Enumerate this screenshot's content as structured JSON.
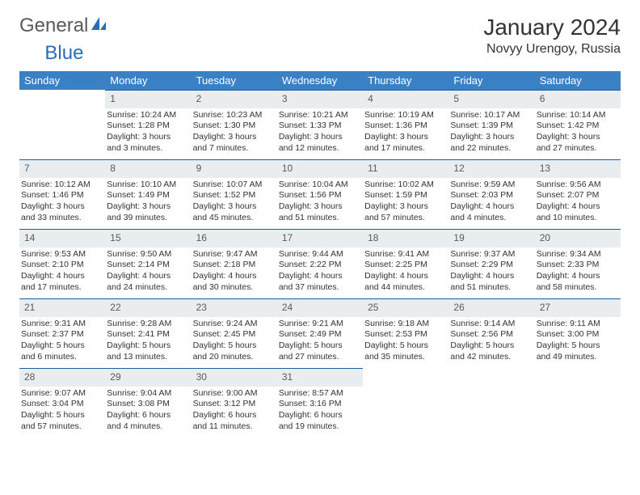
{
  "logo": {
    "text1": "General",
    "text2": "Blue"
  },
  "title": "January 2024",
  "location": "Novyy Urengoy, Russia",
  "weekdays": [
    "Sunday",
    "Monday",
    "Tuesday",
    "Wednesday",
    "Thursday",
    "Friday",
    "Saturday"
  ],
  "colors": {
    "headerBg": "#3a80c4",
    "dayBg": "#e9edf0",
    "borderTop": "#1a5fa0"
  },
  "weeks": [
    [
      {
        "n": "",
        "sr": "",
        "ss": "",
        "dl1": "",
        "dl2": ""
      },
      {
        "n": "1",
        "sr": "Sunrise: 10:24 AM",
        "ss": "Sunset: 1:28 PM",
        "dl1": "Daylight: 3 hours",
        "dl2": "and 3 minutes."
      },
      {
        "n": "2",
        "sr": "Sunrise: 10:23 AM",
        "ss": "Sunset: 1:30 PM",
        "dl1": "Daylight: 3 hours",
        "dl2": "and 7 minutes."
      },
      {
        "n": "3",
        "sr": "Sunrise: 10:21 AM",
        "ss": "Sunset: 1:33 PM",
        "dl1": "Daylight: 3 hours",
        "dl2": "and 12 minutes."
      },
      {
        "n": "4",
        "sr": "Sunrise: 10:19 AM",
        "ss": "Sunset: 1:36 PM",
        "dl1": "Daylight: 3 hours",
        "dl2": "and 17 minutes."
      },
      {
        "n": "5",
        "sr": "Sunrise: 10:17 AM",
        "ss": "Sunset: 1:39 PM",
        "dl1": "Daylight: 3 hours",
        "dl2": "and 22 minutes."
      },
      {
        "n": "6",
        "sr": "Sunrise: 10:14 AM",
        "ss": "Sunset: 1:42 PM",
        "dl1": "Daylight: 3 hours",
        "dl2": "and 27 minutes."
      }
    ],
    [
      {
        "n": "7",
        "sr": "Sunrise: 10:12 AM",
        "ss": "Sunset: 1:46 PM",
        "dl1": "Daylight: 3 hours",
        "dl2": "and 33 minutes."
      },
      {
        "n": "8",
        "sr": "Sunrise: 10:10 AM",
        "ss": "Sunset: 1:49 PM",
        "dl1": "Daylight: 3 hours",
        "dl2": "and 39 minutes."
      },
      {
        "n": "9",
        "sr": "Sunrise: 10:07 AM",
        "ss": "Sunset: 1:52 PM",
        "dl1": "Daylight: 3 hours",
        "dl2": "and 45 minutes."
      },
      {
        "n": "10",
        "sr": "Sunrise: 10:04 AM",
        "ss": "Sunset: 1:56 PM",
        "dl1": "Daylight: 3 hours",
        "dl2": "and 51 minutes."
      },
      {
        "n": "11",
        "sr": "Sunrise: 10:02 AM",
        "ss": "Sunset: 1:59 PM",
        "dl1": "Daylight: 3 hours",
        "dl2": "and 57 minutes."
      },
      {
        "n": "12",
        "sr": "Sunrise: 9:59 AM",
        "ss": "Sunset: 2:03 PM",
        "dl1": "Daylight: 4 hours",
        "dl2": "and 4 minutes."
      },
      {
        "n": "13",
        "sr": "Sunrise: 9:56 AM",
        "ss": "Sunset: 2:07 PM",
        "dl1": "Daylight: 4 hours",
        "dl2": "and 10 minutes."
      }
    ],
    [
      {
        "n": "14",
        "sr": "Sunrise: 9:53 AM",
        "ss": "Sunset: 2:10 PM",
        "dl1": "Daylight: 4 hours",
        "dl2": "and 17 minutes."
      },
      {
        "n": "15",
        "sr": "Sunrise: 9:50 AM",
        "ss": "Sunset: 2:14 PM",
        "dl1": "Daylight: 4 hours",
        "dl2": "and 24 minutes."
      },
      {
        "n": "16",
        "sr": "Sunrise: 9:47 AM",
        "ss": "Sunset: 2:18 PM",
        "dl1": "Daylight: 4 hours",
        "dl2": "and 30 minutes."
      },
      {
        "n": "17",
        "sr": "Sunrise: 9:44 AM",
        "ss": "Sunset: 2:22 PM",
        "dl1": "Daylight: 4 hours",
        "dl2": "and 37 minutes."
      },
      {
        "n": "18",
        "sr": "Sunrise: 9:41 AM",
        "ss": "Sunset: 2:25 PM",
        "dl1": "Daylight: 4 hours",
        "dl2": "and 44 minutes."
      },
      {
        "n": "19",
        "sr": "Sunrise: 9:37 AM",
        "ss": "Sunset: 2:29 PM",
        "dl1": "Daylight: 4 hours",
        "dl2": "and 51 minutes."
      },
      {
        "n": "20",
        "sr": "Sunrise: 9:34 AM",
        "ss": "Sunset: 2:33 PM",
        "dl1": "Daylight: 4 hours",
        "dl2": "and 58 minutes."
      }
    ],
    [
      {
        "n": "21",
        "sr": "Sunrise: 9:31 AM",
        "ss": "Sunset: 2:37 PM",
        "dl1": "Daylight: 5 hours",
        "dl2": "and 6 minutes."
      },
      {
        "n": "22",
        "sr": "Sunrise: 9:28 AM",
        "ss": "Sunset: 2:41 PM",
        "dl1": "Daylight: 5 hours",
        "dl2": "and 13 minutes."
      },
      {
        "n": "23",
        "sr": "Sunrise: 9:24 AM",
        "ss": "Sunset: 2:45 PM",
        "dl1": "Daylight: 5 hours",
        "dl2": "and 20 minutes."
      },
      {
        "n": "24",
        "sr": "Sunrise: 9:21 AM",
        "ss": "Sunset: 2:49 PM",
        "dl1": "Daylight: 5 hours",
        "dl2": "and 27 minutes."
      },
      {
        "n": "25",
        "sr": "Sunrise: 9:18 AM",
        "ss": "Sunset: 2:53 PM",
        "dl1": "Daylight: 5 hours",
        "dl2": "and 35 minutes."
      },
      {
        "n": "26",
        "sr": "Sunrise: 9:14 AM",
        "ss": "Sunset: 2:56 PM",
        "dl1": "Daylight: 5 hours",
        "dl2": "and 42 minutes."
      },
      {
        "n": "27",
        "sr": "Sunrise: 9:11 AM",
        "ss": "Sunset: 3:00 PM",
        "dl1": "Daylight: 5 hours",
        "dl2": "and 49 minutes."
      }
    ],
    [
      {
        "n": "28",
        "sr": "Sunrise: 9:07 AM",
        "ss": "Sunset: 3:04 PM",
        "dl1": "Daylight: 5 hours",
        "dl2": "and 57 minutes."
      },
      {
        "n": "29",
        "sr": "Sunrise: 9:04 AM",
        "ss": "Sunset: 3:08 PM",
        "dl1": "Daylight: 6 hours",
        "dl2": "and 4 minutes."
      },
      {
        "n": "30",
        "sr": "Sunrise: 9:00 AM",
        "ss": "Sunset: 3:12 PM",
        "dl1": "Daylight: 6 hours",
        "dl2": "and 11 minutes."
      },
      {
        "n": "31",
        "sr": "Sunrise: 8:57 AM",
        "ss": "Sunset: 3:16 PM",
        "dl1": "Daylight: 6 hours",
        "dl2": "and 19 minutes."
      },
      {
        "n": "",
        "sr": "",
        "ss": "",
        "dl1": "",
        "dl2": ""
      },
      {
        "n": "",
        "sr": "",
        "ss": "",
        "dl1": "",
        "dl2": ""
      },
      {
        "n": "",
        "sr": "",
        "ss": "",
        "dl1": "",
        "dl2": ""
      }
    ]
  ]
}
